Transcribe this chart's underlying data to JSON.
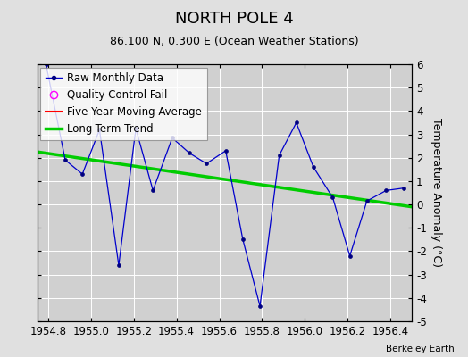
{
  "title": "NORTH POLE 4",
  "subtitle": "86.100 N, 0.300 E (Ocean Weather Stations)",
  "ylabel": "Temperature Anomaly (°C)",
  "credit": "Berkeley Earth",
  "xlim": [
    1954.75,
    1956.5
  ],
  "ylim": [
    -5,
    6
  ],
  "yticks": [
    -5,
    -4,
    -3,
    -2,
    -1,
    0,
    1,
    2,
    3,
    4,
    5,
    6
  ],
  "xticks": [
    1954.8,
    1955.0,
    1955.2,
    1955.4,
    1955.6,
    1955.8,
    1956.0,
    1956.2,
    1956.4
  ],
  "raw_x": [
    1954.79,
    1954.88,
    1954.96,
    1955.04,
    1955.13,
    1955.21,
    1955.29,
    1955.38,
    1955.46,
    1955.54,
    1955.63,
    1955.71,
    1955.79,
    1955.88,
    1955.96,
    1956.04,
    1956.13,
    1956.21,
    1956.29,
    1956.38,
    1956.46
  ],
  "raw_y": [
    6.0,
    1.9,
    1.3,
    3.2,
    -2.6,
    3.25,
    0.6,
    2.85,
    2.2,
    1.75,
    2.3,
    -1.5,
    -4.35,
    2.1,
    3.5,
    1.6,
    0.3,
    -2.2,
    0.15,
    0.6,
    0.7
  ],
  "trend_x": [
    1954.75,
    1956.5
  ],
  "trend_y": [
    2.25,
    -0.1
  ],
  "raw_line_color": "#0000cc",
  "raw_marker_color": "#000080",
  "trend_color": "#00cc00",
  "bg_color": "#e0e0e0",
  "plot_bg_color": "#d0d0d0",
  "grid_color": "#ffffff",
  "title_fontsize": 13,
  "subtitle_fontsize": 9,
  "tick_fontsize": 8.5,
  "legend_fontsize": 8.5
}
